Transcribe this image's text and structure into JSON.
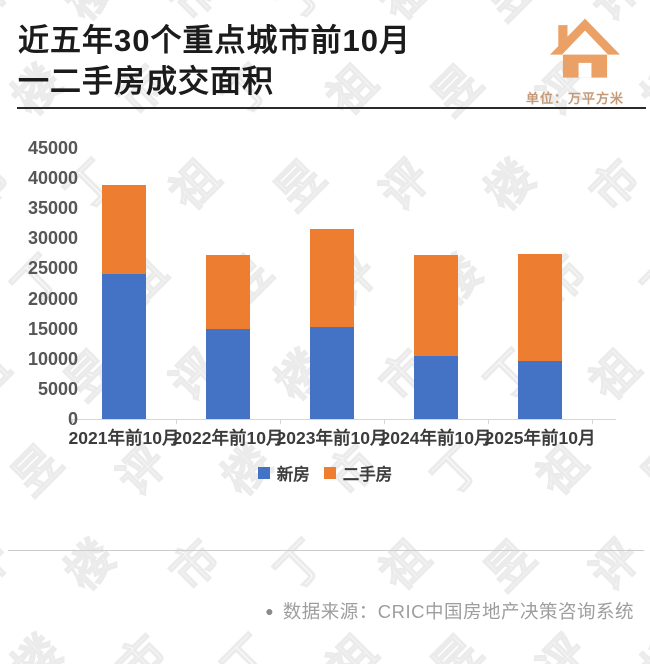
{
  "header": {
    "title_line1": "近五年30个重点城市前10月",
    "title_line2": "一二手房成交面积",
    "unit_label": "单位：万平方米"
  },
  "chart_data": {
    "type": "bar",
    "stacked": true,
    "title": "近五年30个重点城市前10月一二手房成交面积",
    "unit": "万平方米",
    "categories": [
      "2021年前10月",
      "2022年前10月",
      "2023年前10月",
      "2024年前10月",
      "2025年前10月"
    ],
    "series": [
      {
        "name": "新房",
        "color": "#4472C4",
        "values": [
          24000,
          15000,
          15200,
          10400,
          9700
        ]
      },
      {
        "name": "二手房",
        "color": "#ED7D31",
        "values": [
          14900,
          12200,
          16400,
          16900,
          17700
        ]
      }
    ],
    "totals": [
      38900,
      27200,
      31600,
      27300,
      27400
    ],
    "ylim": [
      0,
      45000
    ],
    "yticks": [
      45000,
      40000,
      35000,
      30000,
      25000,
      20000,
      15000,
      10000,
      5000,
      0
    ],
    "xlabel": "",
    "ylabel": "",
    "grid": false,
    "legend_position": "bottom"
  },
  "footer": {
    "bullet": "●",
    "source_text": "数据来源：CRIC中国房地产决策咨询系统"
  },
  "watermark": {
    "chars": [
      "评",
      "楼",
      "市",
      "丁",
      "祖",
      "昱"
    ]
  },
  "colors": {
    "new_home_blue": "#4472C4",
    "secondhand_orange": "#ED7D31",
    "house_icon_orange": "#EBA165",
    "unit_text": "#C49A78",
    "axis_text": "#565656",
    "source_text_gray": "#9E9E9E"
  }
}
